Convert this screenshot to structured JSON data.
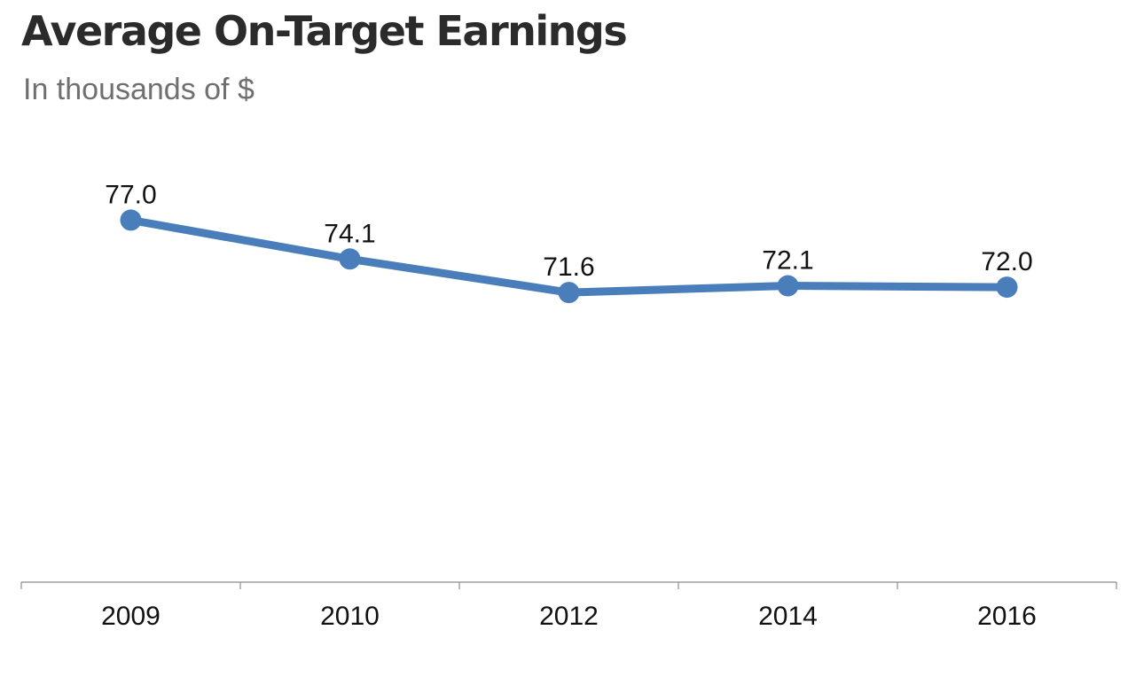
{
  "chart_data": {
    "type": "line",
    "title": "Average On-Target Earnings",
    "subtitle": "In thousands of $",
    "categories": [
      "2009",
      "2010",
      "2012",
      "2014",
      "2016"
    ],
    "series": [
      {
        "values": [
          77.0,
          74.1,
          71.6,
          72.1,
          72.0
        ],
        "data_labels": [
          "77.0",
          "74.1",
          "71.6",
          "72.1",
          "72.0"
        ],
        "color": "#4a7ebb"
      }
    ],
    "ylim": [
      50,
      80
    ],
    "grid": false,
    "legend": "none",
    "marker": "circle"
  }
}
